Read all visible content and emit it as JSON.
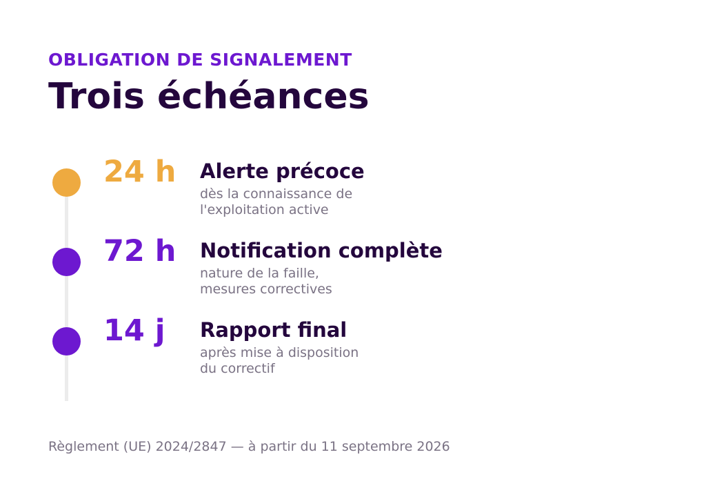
{
  "header": {
    "eyebrow": "OBLIGATION DE SIGNALEMENT",
    "title": "Trois échéances"
  },
  "steps": [
    {
      "value": "24 h",
      "title": "Alerte précoce",
      "desc_lines": [
        "dès la connaissance de",
        "l'exploitation active"
      ],
      "color": "#eeaa40"
    },
    {
      "value": "72 h",
      "title": "Notification complète",
      "desc_lines": [
        "nature de la faille,",
        "mesures correctives"
      ],
      "color": "#6d18d0"
    },
    {
      "value": "14 j",
      "title": "Rapport final",
      "desc_lines": [
        "après mise à disposition",
        "du correctif"
      ],
      "color": "#6d18d0"
    }
  ],
  "footer": "Règlement (UE) 2024/2847 — à partir du 11 septembre 2026"
}
